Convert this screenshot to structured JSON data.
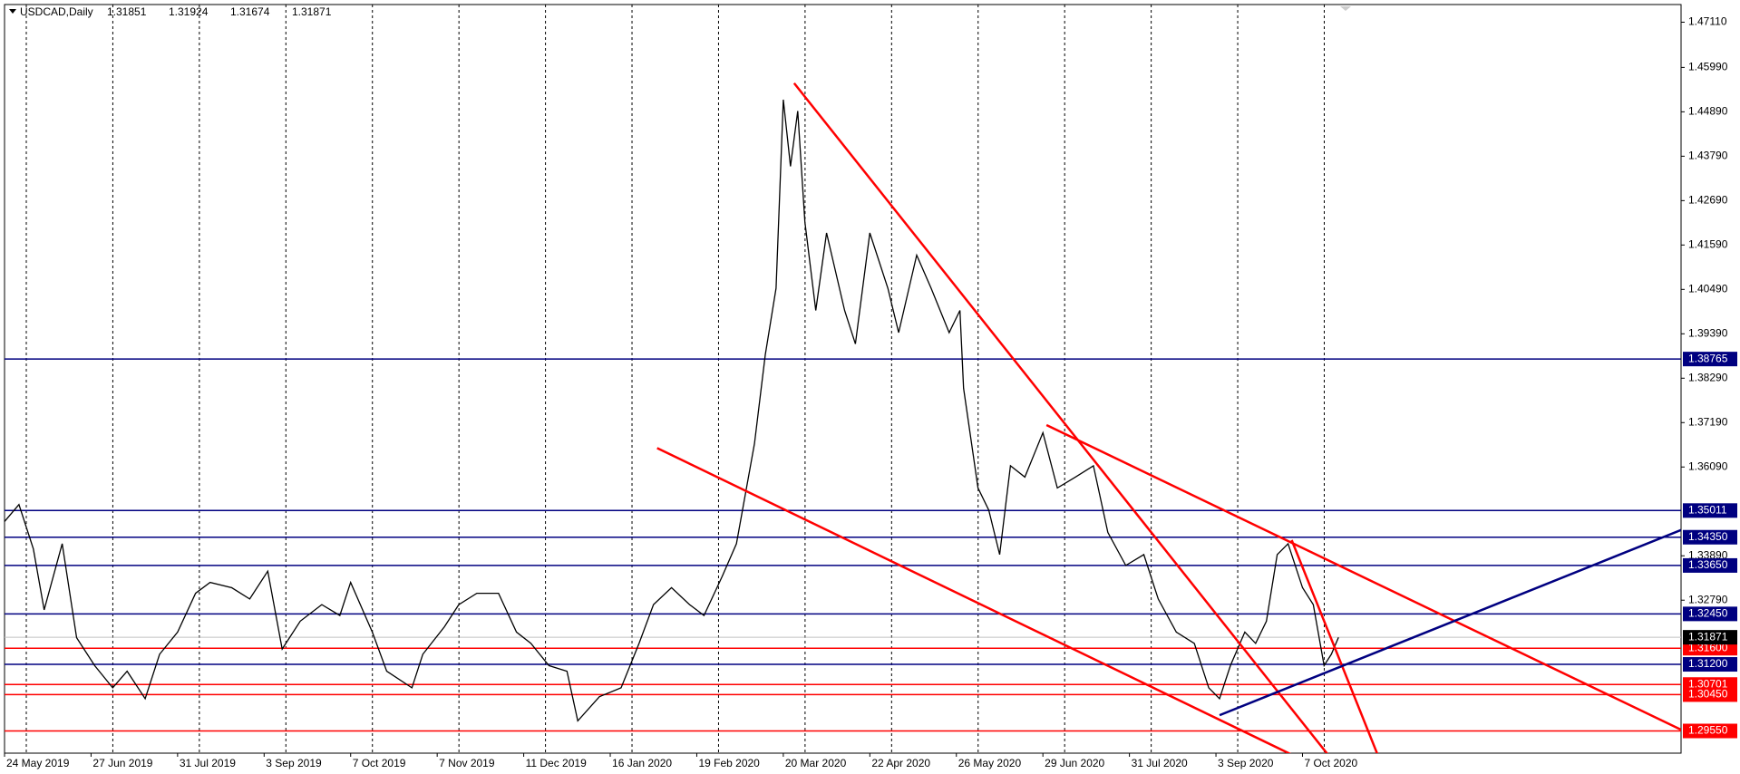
{
  "chart_data": {
    "type": "line",
    "title": "USDCAD,Daily",
    "quote": [
      1.31851,
      1.31924,
      1.31674,
      1.31871
    ],
    "x": [
      0,
      4,
      8,
      11,
      16,
      20,
      25,
      30,
      34,
      39,
      43,
      48,
      53,
      57,
      63,
      68,
      73,
      77,
      82,
      88,
      93,
      96,
      102,
      106,
      113,
      116,
      122,
      126,
      131,
      137,
      142,
      146,
      151,
      156,
      159,
      165,
      171,
      176,
      180,
      185,
      190,
      194,
      199,
      203,
      208,
      211,
      214,
      216,
      218,
      220,
      222,
      225,
      228,
      233,
      236,
      240,
      245,
      248,
      253,
      257,
      262,
      265,
      266,
      270,
      273,
      276,
      279,
      283,
      288,
      292,
      297,
      302,
      306,
      311,
      316,
      320,
      325,
      330,
      334,
      337,
      340,
      344,
      347,
      350,
      353,
      356,
      360,
      363,
      366,
      368,
      370
    ],
    "values": [
      1.3474,
      1.3516,
      1.3406,
      1.3255,
      1.3419,
      1.3186,
      1.3117,
      1.3062,
      1.3103,
      1.3035,
      1.3145,
      1.32,
      1.3296,
      1.3323,
      1.331,
      1.3282,
      1.3351,
      1.3158,
      1.3227,
      1.3268,
      1.3241,
      1.3323,
      1.32,
      1.3103,
      1.3062,
      1.3145,
      1.3213,
      1.3268,
      1.3296,
      1.3296,
      1.32,
      1.3172,
      1.3117,
      1.3103,
      1.298,
      1.304,
      1.3062,
      1.3172,
      1.3268,
      1.331,
      1.3268,
      1.3241,
      1.3337,
      1.3419,
      1.3667,
      1.3887,
      1.4052,
      1.4519,
      1.4354,
      1.4491,
      1.4216,
      1.3997,
      1.4189,
      1.3997,
      1.3914,
      1.4189,
      1.4052,
      1.3942,
      1.4134,
      1.4052,
      1.3942,
      1.3997,
      1.3804,
      1.3557,
      1.3502,
      1.3392,
      1.3612,
      1.3584,
      1.3694,
      1.3557,
      1.3584,
      1.3612,
      1.3447,
      1.3365,
      1.3392,
      1.3282,
      1.32,
      1.3172,
      1.3062,
      1.3035,
      1.3117,
      1.32,
      1.3172,
      1.3227,
      1.3392,
      1.3419,
      1.331,
      1.3268,
      1.3117,
      1.3145,
      1.3187
    ],
    "color": "#000000",
    "xlim": [
      0,
      465
    ],
    "ylim": [
      1.29,
      1.47548
    ],
    "xticks": [
      {
        "value": 0,
        "label": "24 May 2019"
      },
      {
        "value": 24,
        "label": "27 Jun 2019"
      },
      {
        "value": 48,
        "label": "31 Jul 2019"
      },
      {
        "value": 72,
        "label": "3 Sep 2019"
      },
      {
        "value": 96,
        "label": "7 Oct 2019"
      },
      {
        "value": 120,
        "label": "7 Nov 2019"
      },
      {
        "value": 144,
        "label": "11 Dec 2019"
      },
      {
        "value": 168,
        "label": "16 Jan 2020"
      },
      {
        "value": 192,
        "label": "19 Feb 2020"
      },
      {
        "value": 216,
        "label": "20 Mar 2020"
      },
      {
        "value": 240,
        "label": "22 Apr 2020"
      },
      {
        "value": 264,
        "label": "26 May 2020"
      },
      {
        "value": 288,
        "label": "29 Jun 2020"
      },
      {
        "value": 312,
        "label": "31 Jul 2020"
      },
      {
        "value": 336,
        "label": "3 Sep 2020"
      },
      {
        "value": 360,
        "label": "7 Oct 2020"
      }
    ],
    "yticks": [
      {
        "value": 1.4711,
        "label": "1.47110"
      },
      {
        "value": 1.4599,
        "label": "1.45990"
      },
      {
        "value": 1.4489,
        "label": "1.44890"
      },
      {
        "value": 1.4379,
        "label": "1.43790"
      },
      {
        "value": 1.4269,
        "label": "1.42690"
      },
      {
        "value": 1.4159,
        "label": "1.41590"
      },
      {
        "value": 1.4049,
        "label": "1.40490"
      },
      {
        "value": 1.3939,
        "label": "1.39390"
      },
      {
        "value": 1.3829,
        "label": "1.38290"
      },
      {
        "value": 1.3719,
        "label": "1.37190"
      },
      {
        "value": 1.3609,
        "label": "1.36090"
      },
      {
        "value": 1.3389,
        "label": "1.33890"
      },
      {
        "value": 1.3279,
        "label": "1.32790"
      }
    ],
    "grid": true,
    "levels": [
      {
        "value": 1.38765,
        "label": "1.38765",
        "color": "#000080"
      },
      {
        "value": 1.35011,
        "label": "1.35011",
        "color": "#000080"
      },
      {
        "value": 1.3435,
        "label": "1.34350",
        "color": "#000080"
      },
      {
        "value": 1.3365,
        "label": "1.33650",
        "color": "#000080"
      },
      {
        "value": 1.3245,
        "label": "1.32450",
        "color": "#000080"
      },
      {
        "value": 1.316,
        "label": "1.31600",
        "color": "#ff0000"
      },
      {
        "value": 1.312,
        "label": "1.31200",
        "color": "#000080"
      },
      {
        "value": 1.30701,
        "label": "1.30701",
        "color": "#ff0000"
      },
      {
        "value": 1.3045,
        "label": "1.30450",
        "color": "#ff0000"
      },
      {
        "value": 1.2955,
        "label": "1.29550",
        "color": "#ff0000"
      }
    ],
    "current_price": {
      "value": 1.31871,
      "label": "1.31871",
      "color": "#000000"
    },
    "trendlines": [
      {
        "x": [
          181,
          358
        ],
        "values": [
          1.3656,
          1.2892
        ],
        "color": "#ff0000"
      },
      {
        "x": [
          289,
          465
        ],
        "values": [
          1.3713,
          1.2958
        ],
        "color": "#ff0000"
      },
      {
        "x": [
          219,
          367
        ],
        "values": [
          1.456,
          1.2897
        ],
        "color": "#ff0000"
      },
      {
        "x": [
          357,
          383
        ],
        "values": [
          1.3428,
          1.2848
        ],
        "color": "#ff0000"
      },
      {
        "x": [
          337,
          465
        ],
        "values": [
          1.2994,
          1.3453
        ],
        "color": "#000080"
      }
    ]
  }
}
